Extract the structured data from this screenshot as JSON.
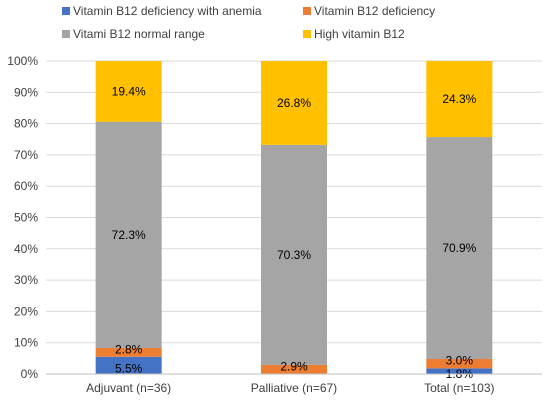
{
  "chart_data": {
    "type": "bar",
    "stacked": true,
    "categories": [
      "Adjuvant (n=36)",
      "Palliative (n=67)",
      "Total (n=103)"
    ],
    "series": [
      {
        "name": "Vitamin B12 deficiency with anemia",
        "color": "#4472C4",
        "values": [
          5.5,
          0,
          1.8
        ],
        "labels": [
          "5.5%",
          "",
          "1.8%"
        ]
      },
      {
        "name": "Vitamin B12 deficiency",
        "color": "#ED7D31",
        "values": [
          2.8,
          2.9,
          3.0
        ],
        "labels": [
          "2.8%",
          "2.9%",
          "3.0%"
        ]
      },
      {
        "name": "Vitami B12 normal range",
        "color": "#A5A5A5",
        "values": [
          72.3,
          70.3,
          70.9
        ],
        "labels": [
          "72.3%",
          "70.3%",
          "70.9%"
        ]
      },
      {
        "name": "High vitamin B12",
        "color": "#FFC000",
        "values": [
          19.4,
          26.8,
          24.3
        ],
        "labels": [
          "19.4%",
          "26.8%",
          "24.3%"
        ]
      }
    ],
    "ylim": [
      0,
      100
    ],
    "yticks": [
      "0%",
      "10%",
      "20%",
      "30%",
      "40%",
      "50%",
      "60%",
      "70%",
      "80%",
      "90%",
      "100%"
    ],
    "grid": true,
    "legend_position": "top"
  }
}
